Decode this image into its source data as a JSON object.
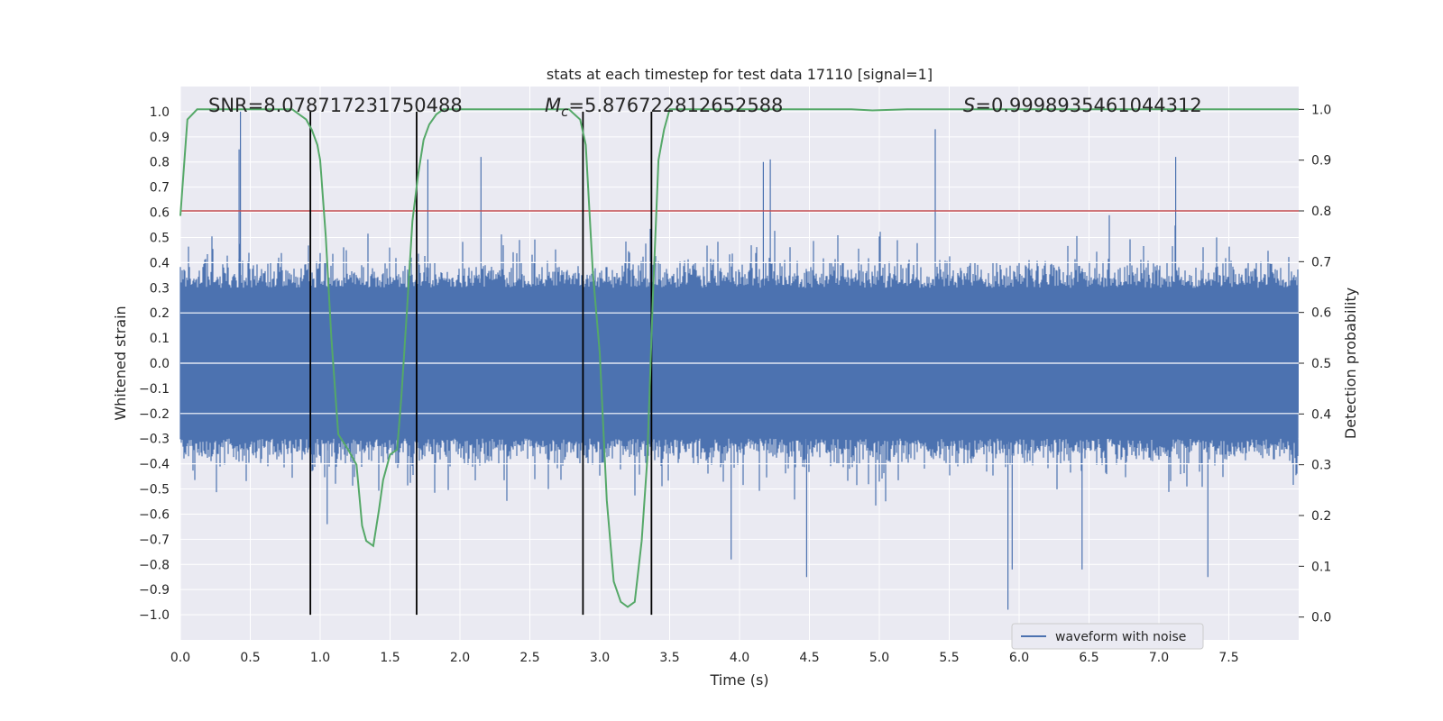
{
  "chart_data": {
    "type": "line",
    "title": "stats at each timestep for test data 17110 [signal=1]",
    "xlabel": "Time (s)",
    "ylabel": "Whitened strain",
    "y2label": "Detection probability",
    "xlim": [
      0.0,
      8.0
    ],
    "ylim": [
      -1.1,
      1.1
    ],
    "y2lim": [
      -0.045,
      1.045
    ],
    "xticks": [
      "0.0",
      "0.5",
      "1.0",
      "1.5",
      "2.0",
      "2.5",
      "3.0",
      "3.5",
      "4.0",
      "4.5",
      "5.0",
      "5.5",
      "6.0",
      "6.5",
      "7.0",
      "7.5"
    ],
    "xtick_values": [
      0.0,
      0.5,
      1.0,
      1.5,
      2.0,
      2.5,
      3.0,
      3.5,
      4.0,
      4.5,
      5.0,
      5.5,
      6.0,
      6.5,
      7.0,
      7.5
    ],
    "yticks": [
      "1.0",
      "0.9",
      "0.8",
      "0.7",
      "0.6",
      "0.5",
      "0.4",
      "0.3",
      "0.2",
      "0.1",
      "0.0",
      "−0.1",
      "−0.2",
      "−0.3",
      "−0.4",
      "−0.5",
      "−0.6",
      "−0.7",
      "−0.8",
      "−0.9",
      "−1.0"
    ],
    "ytick_values": [
      1.0,
      0.9,
      0.8,
      0.7,
      0.6,
      0.5,
      0.4,
      0.3,
      0.2,
      0.1,
      0.0,
      -0.1,
      -0.2,
      -0.3,
      -0.4,
      -0.5,
      -0.6,
      -0.7,
      -0.8,
      -0.9,
      -1.0
    ],
    "y2ticks": [
      "1.0",
      "0.9",
      "0.8",
      "0.7",
      "0.6",
      "0.5",
      "0.4",
      "0.3",
      "0.2",
      "0.1",
      "0.0"
    ],
    "y2tick_values": [
      1.0,
      0.9,
      0.8,
      0.7,
      0.6,
      0.5,
      0.4,
      0.3,
      0.2,
      0.1,
      0.0
    ],
    "annotations": [
      {
        "text": "SNR=8.078717231750488",
        "x": 0.2,
        "y": 1.02
      },
      {
        "text": "M_c=5.876722812652588",
        "x": 2.6,
        "y": 1.02
      },
      {
        "text": "S=0.9998935461044312",
        "x": 5.6,
        "y": 1.02
      }
    ],
    "threshold": {
      "y": 0.8,
      "color": "#c44e52"
    },
    "vertical_lines": [
      0.93,
      1.69,
      2.88,
      3.37
    ],
    "vertical_line_range": [
      -1.0,
      1.0
    ],
    "legend": {
      "position": "lower-right",
      "entries": [
        "waveform with noise"
      ]
    },
    "grid": true,
    "colors": {
      "background": "#eaeaf2",
      "grid": "#ffffff",
      "waveform": "#4c72b0",
      "probability": "#55a868",
      "threshold": "#c44e52",
      "vlines": "#000000"
    },
    "series": [
      {
        "name": "waveform with noise",
        "axis": "left",
        "x_range": [
          0.0,
          8.0
        ],
        "core_amplitude": 0.2,
        "peaks": [
          {
            "x": 0.43,
            "y": 1.0
          },
          {
            "x": 0.42,
            "y": 0.85
          },
          {
            "x": 0.93,
            "y": 0.55
          },
          {
            "x": 1.77,
            "y": 0.81
          },
          {
            "x": 2.15,
            "y": 0.82
          },
          {
            "x": 4.17,
            "y": 0.8
          },
          {
            "x": 4.22,
            "y": 0.81
          },
          {
            "x": 5.4,
            "y": 0.93
          },
          {
            "x": 7.12,
            "y": 0.82
          },
          {
            "x": 1.05,
            "y": -0.64
          },
          {
            "x": 4.48,
            "y": -0.85
          },
          {
            "x": 5.92,
            "y": -0.98
          },
          {
            "x": 5.95,
            "y": -0.82
          },
          {
            "x": 6.45,
            "y": -0.82
          },
          {
            "x": 7.35,
            "y": -0.85
          },
          {
            "x": 3.94,
            "y": -0.78
          }
        ]
      },
      {
        "name": "",
        "axis": "right",
        "x": [
          0.0,
          0.05,
          0.12,
          0.2,
          0.3,
          0.4,
          0.5,
          0.6,
          0.7,
          0.8,
          0.85,
          0.9,
          0.94,
          0.98,
          1.0,
          1.04,
          1.08,
          1.13,
          1.2,
          1.26,
          1.3,
          1.33,
          1.38,
          1.42,
          1.45,
          1.5,
          1.55,
          1.58,
          1.62,
          1.66,
          1.7,
          1.74,
          1.78,
          1.83,
          1.88,
          1.95,
          2.05,
          2.2,
          2.4,
          2.6,
          2.7,
          2.78,
          2.82,
          2.86,
          2.9,
          2.95,
          3.0,
          3.05,
          3.1,
          3.15,
          3.2,
          3.25,
          3.3,
          3.34,
          3.38,
          3.42,
          3.46,
          3.5,
          3.6,
          3.8,
          4.2,
          4.6,
          4.8,
          4.95,
          5.2,
          5.6,
          6.0,
          6.5,
          7.0,
          7.5,
          8.0
        ],
        "y": [
          0.79,
          0.98,
          1.0,
          1.0,
          1.0,
          1.0,
          1.0,
          1.0,
          1.0,
          1.0,
          0.99,
          0.98,
          0.96,
          0.93,
          0.9,
          0.75,
          0.55,
          0.36,
          0.33,
          0.3,
          0.18,
          0.15,
          0.14,
          0.21,
          0.27,
          0.32,
          0.33,
          0.43,
          0.6,
          0.78,
          0.87,
          0.94,
          0.97,
          0.99,
          1.0,
          1.0,
          1.0,
          1.0,
          1.0,
          1.0,
          1.0,
          1.0,
          0.99,
          0.98,
          0.93,
          0.68,
          0.52,
          0.23,
          0.07,
          0.03,
          0.02,
          0.03,
          0.15,
          0.31,
          0.63,
          0.9,
          0.96,
          1.0,
          1.0,
          1.0,
          1.0,
          1.0,
          1.0,
          0.998,
          1.0,
          1.0,
          1.0,
          1.0,
          1.0,
          1.0,
          1.0
        ]
      }
    ]
  }
}
